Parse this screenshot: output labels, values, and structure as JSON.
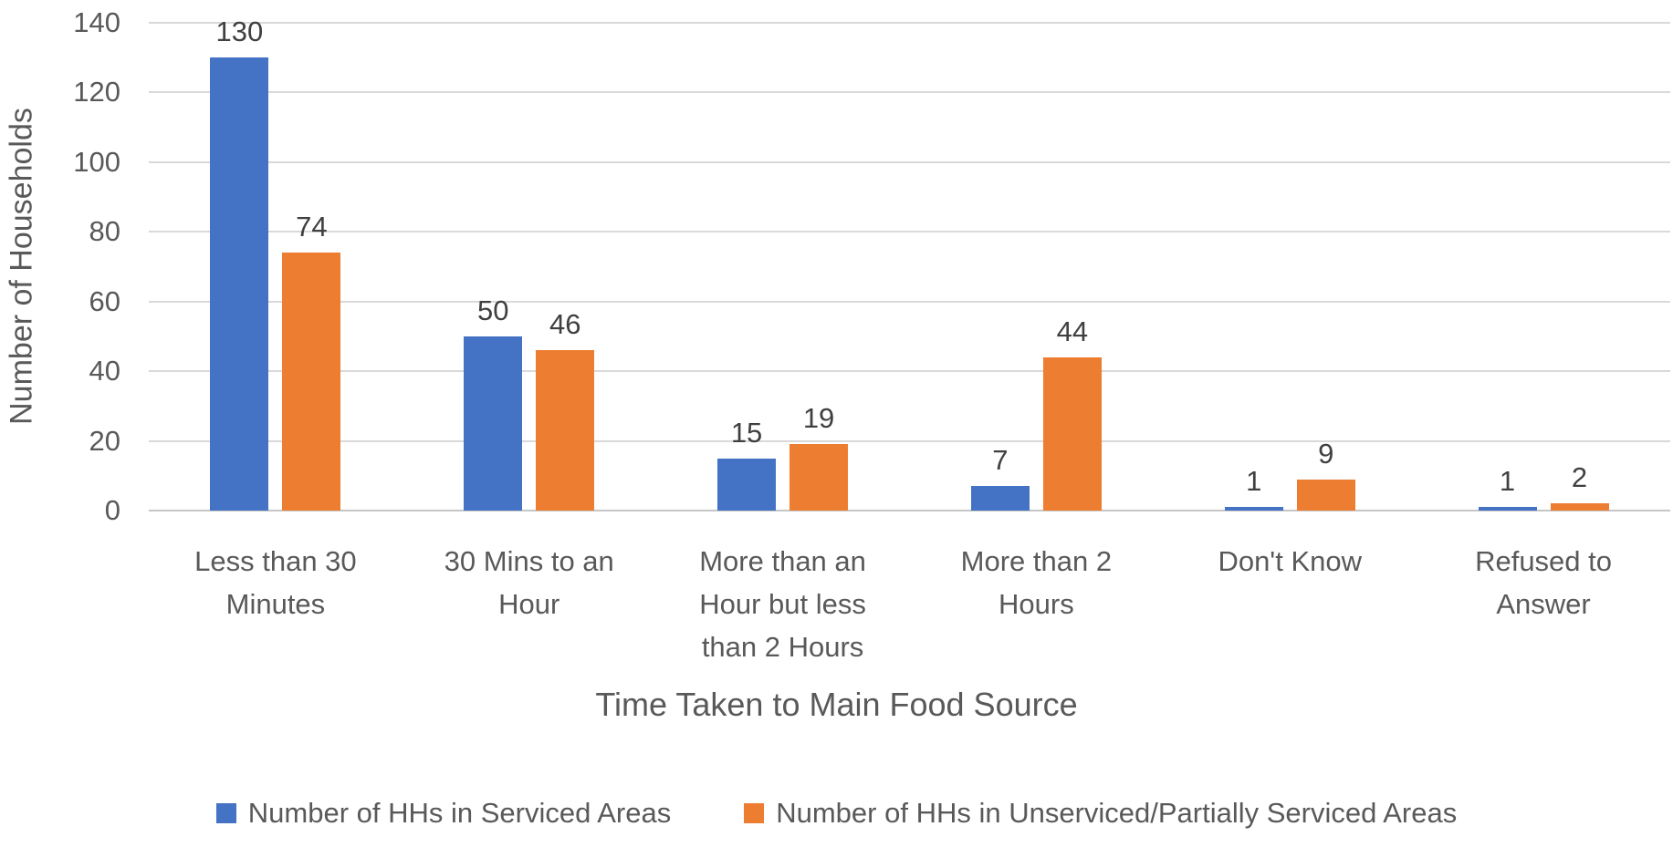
{
  "chart_data": {
    "type": "bar",
    "title": "",
    "categories": [
      "Less than 30 Minutes",
      "30 Mins to an Hour",
      "More than an Hour but less than 2 Hours",
      "More than 2 Hours",
      "Don't Know",
      "Refused to Answer"
    ],
    "series": [
      {
        "name": "Number of HHs in Serviced Areas",
        "color": "#4472C4",
        "values": [
          130,
          50,
          15,
          7,
          1,
          1
        ]
      },
      {
        "name": "Number of HHs in Unserviced/Partially Serviced Areas",
        "color": "#ED7D31",
        "values": [
          74,
          46,
          19,
          44,
          9,
          2
        ]
      }
    ],
    "xlabel": "Time Taken to Main Food Source",
    "ylabel": "Number of Households",
    "ylim": [
      0,
      140
    ],
    "yticks": [
      0,
      20,
      40,
      60,
      80,
      100,
      120,
      140
    ],
    "grid": true,
    "legend_position": "bottom",
    "data_labels": true
  },
  "style_colors": {
    "axis_text": "#595959",
    "data_label_text": "#404040",
    "gridline": "#D9D9D9",
    "baseline": "#C6C6C6",
    "background": "#FFFFFF"
  }
}
